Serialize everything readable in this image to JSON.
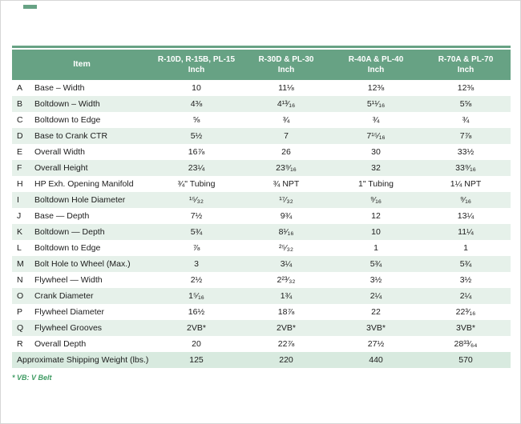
{
  "page": {
    "note": "* VB: V Belt"
  },
  "table": {
    "item_header": "Item",
    "unit_label": "Inch",
    "columns": [
      "R-10D, R-15B, PL-15",
      "R-30D & PL-30",
      "R-40A & PL-40",
      "R-70A & PL-70"
    ],
    "rows": [
      {
        "letter": "A",
        "item": "Base – Width",
        "values": [
          "10",
          "11⅛",
          "12⅜",
          "12⅜"
        ]
      },
      {
        "letter": "B",
        "item": "Boltdown – Width",
        "values": [
          "4⅜",
          "4¹³⁄₁₆",
          "5¹¹⁄₁₆",
          "5⅝"
        ]
      },
      {
        "letter": "C",
        "item": "Boltdown to Edge",
        "values": [
          "⅝",
          "¾",
          "¾",
          "¾"
        ]
      },
      {
        "letter": "D",
        "item": "Base to Crank CTR",
        "values": [
          "5½",
          "7",
          "7¹⁵⁄₁₆",
          "7⅞"
        ]
      },
      {
        "letter": "E",
        "item": "Overall Width",
        "values": [
          "16⅞",
          "26",
          "30",
          "33½"
        ]
      },
      {
        "letter": "F",
        "item": "Overall Height",
        "values": [
          "23¼",
          "23⁹⁄₁₆",
          "32",
          "33⁹⁄₁₆"
        ]
      },
      {
        "letter": "H",
        "item": "HP Exh. Opening Manifold",
        "values": [
          "¾\" Tubing",
          "¾ NPT",
          "1\" Tubing",
          "1¼ NPT"
        ]
      },
      {
        "letter": "I",
        "item": "Boltdown Hole Diameter",
        "values": [
          "¹⁵⁄₃₂",
          "¹⁷⁄₃₂",
          "⁹⁄₁₆",
          "⁹⁄₁₆"
        ]
      },
      {
        "letter": "J",
        "item": "Base — Depth",
        "values": [
          "7½",
          "9¾",
          "12",
          "13¼"
        ]
      },
      {
        "letter": "K",
        "item": "Boltdown — Depth",
        "values": [
          "5¾",
          "8¹⁄₁₆",
          "10",
          "11¼"
        ]
      },
      {
        "letter": "L",
        "item": "Boltdown to Edge",
        "values": [
          "⅞",
          "²⁵⁄₃₂",
          "1",
          "1"
        ]
      },
      {
        "letter": "M",
        "item": "Bolt Hole to Wheel (Max.)",
        "values": [
          "3",
          "3¼",
          "5¾",
          "5¾"
        ]
      },
      {
        "letter": "N",
        "item": "Flywheel — Width",
        "values": [
          "2½",
          "2²³⁄₃₂",
          "3½",
          "3½"
        ]
      },
      {
        "letter": "O",
        "item": "Crank Diameter",
        "values": [
          "1⁵⁄₁₆",
          "1¾",
          "2¼",
          "2¼"
        ]
      },
      {
        "letter": "P",
        "item": "Flywheel Diameter",
        "values": [
          "16½",
          "18⅞",
          "22",
          "22³⁄₁₆"
        ]
      },
      {
        "letter": "Q",
        "item": "Flywheel Grooves",
        "values": [
          "2VB*",
          "2VB*",
          "3VB*",
          "3VB*"
        ]
      },
      {
        "letter": "R",
        "item": "Overall Depth",
        "values": [
          "20",
          "22⅞",
          "27½",
          "28³³⁄₆₄"
        ]
      }
    ],
    "summary_row": {
      "label": "Approximate Shipping Weight (lbs.)",
      "values": [
        "125",
        "220",
        "440",
        "570"
      ]
    }
  },
  "colors": {
    "header_green": "#67a284",
    "stripe_green": "#e6f1ea",
    "summary_green": "#d8eadf",
    "note_green": "#3f9b63"
  }
}
